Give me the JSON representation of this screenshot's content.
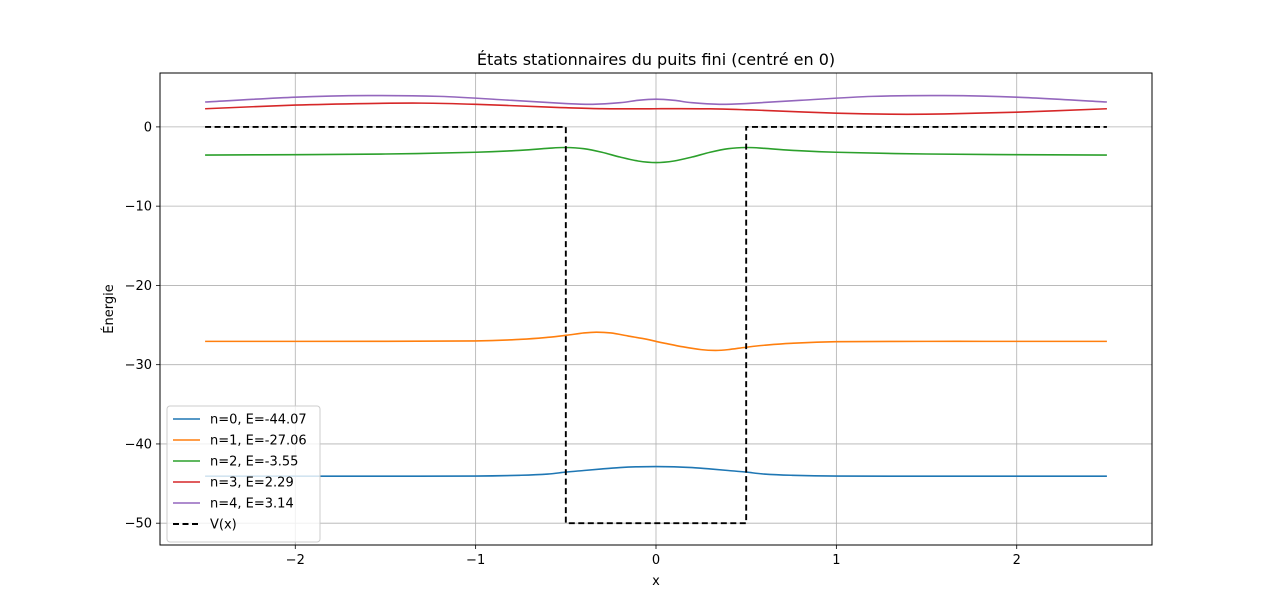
{
  "chart_data": {
    "type": "line",
    "title": "États stationnaires du puits fini (centré en 0)",
    "xlabel": "x",
    "ylabel": "Énergie",
    "xlim": [
      -2.75,
      2.75
    ],
    "ylim": [
      -52.75,
      6.8
    ],
    "xticks": [
      -2,
      -1,
      0,
      1,
      2
    ],
    "xtick_labels": [
      "−2",
      "−1",
      "0",
      "1",
      "2"
    ],
    "yticks": [
      0,
      -10,
      -20,
      -30,
      -40,
      -50
    ],
    "ytick_labels": [
      "0",
      "−10",
      "−20",
      "−30",
      "−40",
      "−50"
    ],
    "grid": true,
    "legend_position": "lower-left",
    "series": [
      {
        "name": "n=0, E=-44.07",
        "color": "#1f77b4",
        "style": "solid",
        "x": [
          -2.5,
          -2.0,
          -1.5,
          -1.0,
          -0.75,
          -0.6,
          -0.5,
          -0.4,
          -0.3,
          -0.2,
          -0.1,
          0.0,
          0.1,
          0.2,
          0.3,
          0.4,
          0.5,
          0.6,
          0.75,
          1.0,
          1.5,
          2.0,
          2.5
        ],
        "y": [
          -44.07,
          -44.07,
          -44.07,
          -44.05,
          -43.95,
          -43.8,
          -43.55,
          -43.35,
          -43.15,
          -42.98,
          -42.88,
          -42.85,
          -42.88,
          -42.98,
          -43.15,
          -43.35,
          -43.55,
          -43.8,
          -43.95,
          -44.05,
          -44.07,
          -44.07,
          -44.07
        ]
      },
      {
        "name": "n=1, E=-27.06",
        "color": "#ff7f0e",
        "style": "solid",
        "x": [
          -2.5,
          -2.0,
          -1.5,
          -1.0,
          -0.75,
          -0.6,
          -0.5,
          -0.4,
          -0.33,
          -0.25,
          -0.15,
          -0.05,
          0.0,
          0.05,
          0.15,
          0.25,
          0.33,
          0.4,
          0.5,
          0.6,
          0.75,
          1.0,
          1.5,
          2.0,
          2.5
        ],
        "y": [
          -27.06,
          -27.06,
          -27.05,
          -27.0,
          -26.8,
          -26.55,
          -26.3,
          -26.0,
          -25.9,
          -26.0,
          -26.4,
          -26.8,
          -27.06,
          -27.3,
          -27.75,
          -28.1,
          -28.2,
          -28.1,
          -27.8,
          -27.55,
          -27.3,
          -27.1,
          -27.06,
          -27.06,
          -27.06
        ]
      },
      {
        "name": "n=2, E=-3.55",
        "color": "#2ca02c",
        "style": "solid",
        "x": [
          -2.5,
          -2.0,
          -1.5,
          -1.0,
          -0.75,
          -0.6,
          -0.5,
          -0.4,
          -0.3,
          -0.2,
          -0.1,
          0.0,
          0.1,
          0.2,
          0.3,
          0.4,
          0.5,
          0.6,
          0.75,
          1.0,
          1.5,
          2.0,
          2.5
        ],
        "y": [
          -3.55,
          -3.5,
          -3.42,
          -3.2,
          -2.95,
          -2.7,
          -2.6,
          -2.75,
          -3.2,
          -3.8,
          -4.3,
          -4.5,
          -4.3,
          -3.8,
          -3.2,
          -2.75,
          -2.6,
          -2.7,
          -2.95,
          -3.2,
          -3.42,
          -3.5,
          -3.55
        ]
      },
      {
        "name": "n=3, E=2.29",
        "color": "#d62728",
        "style": "solid",
        "x": [
          -2.5,
          -2.0,
          -1.6,
          -1.3,
          -1.0,
          -0.6,
          -0.5,
          -0.3,
          -0.1,
          0.0,
          0.1,
          0.3,
          0.5,
          0.6,
          1.0,
          1.3,
          1.6,
          2.0,
          2.5
        ],
        "y": [
          2.29,
          2.75,
          2.95,
          3.0,
          2.85,
          2.5,
          2.42,
          2.3,
          2.28,
          2.29,
          2.3,
          2.28,
          2.16,
          2.08,
          1.73,
          1.6,
          1.63,
          1.85,
          2.29
        ]
      },
      {
        "name": "n=4, E=3.14",
        "color": "#9467bd",
        "style": "solid",
        "x": [
          -2.5,
          -2.0,
          -1.6,
          -1.2,
          -0.8,
          -0.5,
          -0.35,
          -0.2,
          -0.1,
          0.0,
          0.1,
          0.2,
          0.35,
          0.5,
          0.8,
          1.2,
          1.6,
          2.0,
          2.5
        ],
        "y": [
          3.14,
          3.75,
          3.95,
          3.85,
          3.35,
          2.95,
          2.85,
          3.05,
          3.35,
          3.5,
          3.35,
          3.05,
          2.85,
          2.95,
          3.35,
          3.85,
          3.95,
          3.75,
          3.14
        ]
      },
      {
        "name": "V(x)",
        "color": "#000000",
        "style": "dashed",
        "x": [
          -2.5,
          -0.5,
          -0.5,
          0.5,
          0.5,
          2.5
        ],
        "y": [
          0,
          0,
          -50,
          -50,
          0,
          0
        ]
      }
    ]
  }
}
